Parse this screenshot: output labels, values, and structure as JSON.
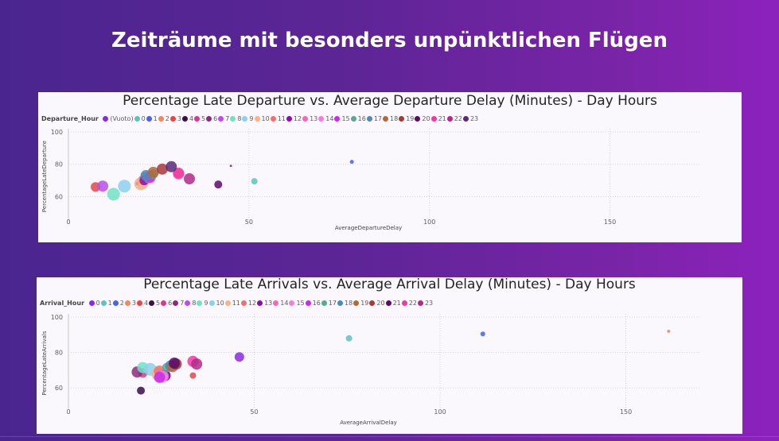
{
  "page": {
    "title": "Zeiträume mit besonders unpünktlichen Flügen"
  },
  "chart_data": [
    {
      "type": "scatter",
      "title": "Percentage Late Departure vs. Average Departure Delay (Minutes) - Day Hours",
      "xlabel": "AverageDepartureDelay",
      "ylabel": "PercentageLateDeparture",
      "xlim": [
        0,
        175
      ],
      "ylim": [
        45,
        100
      ],
      "xticks": [
        "0",
        "50",
        "100",
        "150"
      ],
      "yticks": [
        "60",
        "80",
        "100"
      ],
      "grid": true,
      "legend": {
        "title": "Departure_Hour",
        "position": "top-left",
        "items": [
          {
            "label": "(Vuoto)",
            "color": "#8a2be2"
          },
          {
            "label": "0",
            "color": "#5bc4c0"
          },
          {
            "label": "1",
            "color": "#4a61e8"
          },
          {
            "label": "2",
            "color": "#f08a5d"
          },
          {
            "label": "3",
            "color": "#e0484a"
          },
          {
            "label": "4",
            "color": "#3a0d4c"
          },
          {
            "label": "5",
            "color": "#d63c86"
          },
          {
            "label": "6",
            "color": "#8e2a7c"
          },
          {
            "label": "7",
            "color": "#b84fe8"
          },
          {
            "label": "8",
            "color": "#6ee3c4"
          },
          {
            "label": "9",
            "color": "#8ad1ef"
          },
          {
            "label": "10",
            "color": "#f7b48b"
          },
          {
            "label": "11",
            "color": "#f0716a"
          },
          {
            "label": "12",
            "color": "#8a0fa8"
          },
          {
            "label": "13",
            "color": "#f06bb4"
          },
          {
            "label": "14",
            "color": "#f080e0"
          },
          {
            "label": "15",
            "color": "#c92ce8"
          },
          {
            "label": "16",
            "color": "#5aa894"
          },
          {
            "label": "17",
            "color": "#4a8ac0"
          },
          {
            "label": "18",
            "color": "#b06a3a"
          },
          {
            "label": "19",
            "color": "#a63a3a"
          },
          {
            "label": "20",
            "color": "#5a0a6c"
          },
          {
            "label": "21",
            "color": "#f03aa0"
          },
          {
            "label": "22",
            "color": "#b02a8a"
          },
          {
            "label": "23",
            "color": "#5a2a7a"
          }
        ]
      },
      "points": [
        {
          "name": "0",
          "x": 51.5,
          "y": 69.5,
          "r": 4,
          "color": "#5bc4c0"
        },
        {
          "name": "1",
          "x": 78.5,
          "y": 81.5,
          "r": 2.5,
          "color": "#4a61e8"
        },
        {
          "name": "2",
          "x": 20.5,
          "y": 68.5,
          "r": 8,
          "color": "#f7b48b"
        },
        {
          "name": "3",
          "x": 7.5,
          "y": 66,
          "r": 6,
          "color": "#e0484a"
        },
        {
          "name": "4",
          "x": 19,
          "y": 68,
          "r": 2,
          "color": "#3a0d4c"
        },
        {
          "name": "5",
          "x": 20.5,
          "y": 70,
          "r": 6,
          "color": "#d63c86"
        },
        {
          "name": "6",
          "x": 45,
          "y": 79,
          "r": 1.5,
          "color": "#8e2a7c"
        },
        {
          "name": "7",
          "x": 9.5,
          "y": 66.5,
          "r": 7,
          "color": "#b84fe8"
        },
        {
          "name": "8",
          "x": 12.5,
          "y": 61.5,
          "r": 8,
          "color": "#6ee3c4"
        },
        {
          "name": "9",
          "x": 15.5,
          "y": 66.5,
          "r": 8,
          "color": "#8ad1ef"
        },
        {
          "name": "10",
          "x": 20,
          "y": 68,
          "r": 8,
          "color": "#f7b48b"
        },
        {
          "name": "11",
          "x": 21.5,
          "y": 72,
          "r": 7,
          "color": "#f0716a"
        },
        {
          "name": "12",
          "x": 21,
          "y": 70,
          "r": 6,
          "color": "#8a0fa8"
        },
        {
          "name": "13",
          "x": 30.5,
          "y": 74,
          "r": 7,
          "color": "#f06bb4"
        },
        {
          "name": "14",
          "x": 22.5,
          "y": 72,
          "r": 8,
          "color": "#f080e0"
        },
        {
          "name": "15",
          "x": 22.5,
          "y": 72,
          "r": 7,
          "color": "#c92ce8"
        },
        {
          "name": "16",
          "x": 23.5,
          "y": 74,
          "r": 6,
          "color": "#5aa894"
        },
        {
          "name": "17",
          "x": 21.5,
          "y": 73,
          "r": 7,
          "color": "#4a8ac0"
        },
        {
          "name": "18",
          "x": 23.5,
          "y": 75,
          "r": 7,
          "color": "#b06a3a"
        },
        {
          "name": "19",
          "x": 26,
          "y": 77,
          "r": 7,
          "color": "#a63a3a"
        },
        {
          "name": "20",
          "x": 41.5,
          "y": 67.5,
          "r": 5,
          "color": "#5a0a6c"
        },
        {
          "name": "21",
          "x": 30.5,
          "y": 74.5,
          "r": 7,
          "color": "#f03aa0"
        },
        {
          "name": "22",
          "x": 33.5,
          "y": 71,
          "r": 7,
          "color": "#b02a8a"
        },
        {
          "name": "23",
          "x": 28.5,
          "y": 78.5,
          "r": 7,
          "color": "#5a2a7a"
        }
      ]
    },
    {
      "type": "scatter",
      "title": "Percentage Late Arrivals vs. Average Arrival Delay (Minutes) - Day Hours",
      "xlabel": "AverageArrivalDelay",
      "ylabel": "PercentageLateArrivals",
      "xlim": [
        0,
        170
      ],
      "ylim": [
        48,
        100
      ],
      "xticks": [
        "0",
        "50",
        "100",
        "150"
      ],
      "yticks": [
        "60",
        "80",
        "100"
      ],
      "grid": true,
      "legend": {
        "title": "Arrival_Hour",
        "position": "top-left",
        "items": [
          {
            "label": "0",
            "color": "#8a2be2"
          },
          {
            "label": "1",
            "color": "#5bc4c0"
          },
          {
            "label": "2",
            "color": "#4a61e8"
          },
          {
            "label": "3",
            "color": "#f08a5d"
          },
          {
            "label": "4",
            "color": "#e0484a"
          },
          {
            "label": "5",
            "color": "#3a0d4c"
          },
          {
            "label": "6",
            "color": "#d63c86"
          },
          {
            "label": "7",
            "color": "#8e2a7c"
          },
          {
            "label": "8",
            "color": "#b84fe8"
          },
          {
            "label": "9",
            "color": "#6ee3c4"
          },
          {
            "label": "10",
            "color": "#8ad1ef"
          },
          {
            "label": "11",
            "color": "#f7b48b"
          },
          {
            "label": "12",
            "color": "#f0716a"
          },
          {
            "label": "13",
            "color": "#8a0fa8"
          },
          {
            "label": "14",
            "color": "#f06bb4"
          },
          {
            "label": "15",
            "color": "#f080e0"
          },
          {
            "label": "16",
            "color": "#c92ce8"
          },
          {
            "label": "17",
            "color": "#5aa894"
          },
          {
            "label": "18",
            "color": "#4a8ac0"
          },
          {
            "label": "19",
            "color": "#b06a3a"
          },
          {
            "label": "20",
            "color": "#a63a3a"
          },
          {
            "label": "21",
            "color": "#5a0a6c"
          },
          {
            "label": "22",
            "color": "#f03aa0"
          },
          {
            "label": "23",
            "color": "#b02a8a"
          }
        ]
      },
      "points": [
        {
          "name": "0",
          "x": 46,
          "y": 77.5,
          "r": 6,
          "color": "#8a2be2"
        },
        {
          "name": "1",
          "x": 75.5,
          "y": 88,
          "r": 4,
          "color": "#5bc4c0"
        },
        {
          "name": "2",
          "x": 111.5,
          "y": 90.5,
          "r": 3,
          "color": "#4a61e8"
        },
        {
          "name": "3",
          "x": 161.5,
          "y": 92,
          "r": 2,
          "color": "#f08a5d"
        },
        {
          "name": "4",
          "x": 33.5,
          "y": 67,
          "r": 4,
          "color": "#e0484a"
        },
        {
          "name": "5",
          "x": 19.5,
          "y": 58.5,
          "r": 5,
          "color": "#3a0d4c"
        },
        {
          "name": "6",
          "x": 20,
          "y": 68.5,
          "r": 6,
          "color": "#d63c86"
        },
        {
          "name": "7",
          "x": 18.5,
          "y": 69,
          "r": 7,
          "color": "#8e2a7c"
        },
        {
          "name": "8",
          "x": 26,
          "y": 67,
          "r": 7,
          "color": "#b84fe8"
        },
        {
          "name": "9",
          "x": 20,
          "y": 71.5,
          "r": 7,
          "color": "#6ee3c4"
        },
        {
          "name": "10",
          "x": 22,
          "y": 70.5,
          "r": 8,
          "color": "#8ad1ef"
        },
        {
          "name": "11",
          "x": 24,
          "y": 68,
          "r": 8,
          "color": "#f7b48b"
        },
        {
          "name": "12",
          "x": 24.5,
          "y": 69.5,
          "r": 7,
          "color": "#f0716a"
        },
        {
          "name": "13",
          "x": 26,
          "y": 67,
          "r": 7,
          "color": "#8a0fa8"
        },
        {
          "name": "14",
          "x": 25,
          "y": 66.5,
          "r": 8,
          "color": "#f06bb4"
        },
        {
          "name": "15",
          "x": 25.5,
          "y": 66.5,
          "r": 7,
          "color": "#f080e0"
        },
        {
          "name": "16",
          "x": 24.5,
          "y": 66,
          "r": 7,
          "color": "#c92ce8"
        },
        {
          "name": "17",
          "x": 26.5,
          "y": 71.5,
          "r": 6,
          "color": "#5aa894"
        },
        {
          "name": "18",
          "x": 27.5,
          "y": 72.5,
          "r": 7,
          "color": "#4a8ac0"
        },
        {
          "name": "19",
          "x": 28,
          "y": 72,
          "r": 7,
          "color": "#b06a3a"
        },
        {
          "name": "20",
          "x": 29,
          "y": 73.5,
          "r": 7,
          "color": "#a63a3a"
        },
        {
          "name": "21",
          "x": 28.5,
          "y": 74,
          "r": 7,
          "color": "#5a0a6c"
        },
        {
          "name": "22",
          "x": 33.5,
          "y": 75,
          "r": 7,
          "color": "#f03aa0"
        },
        {
          "name": "23",
          "x": 34.5,
          "y": 73.5,
          "r": 7,
          "color": "#b02a8a"
        }
      ]
    }
  ]
}
